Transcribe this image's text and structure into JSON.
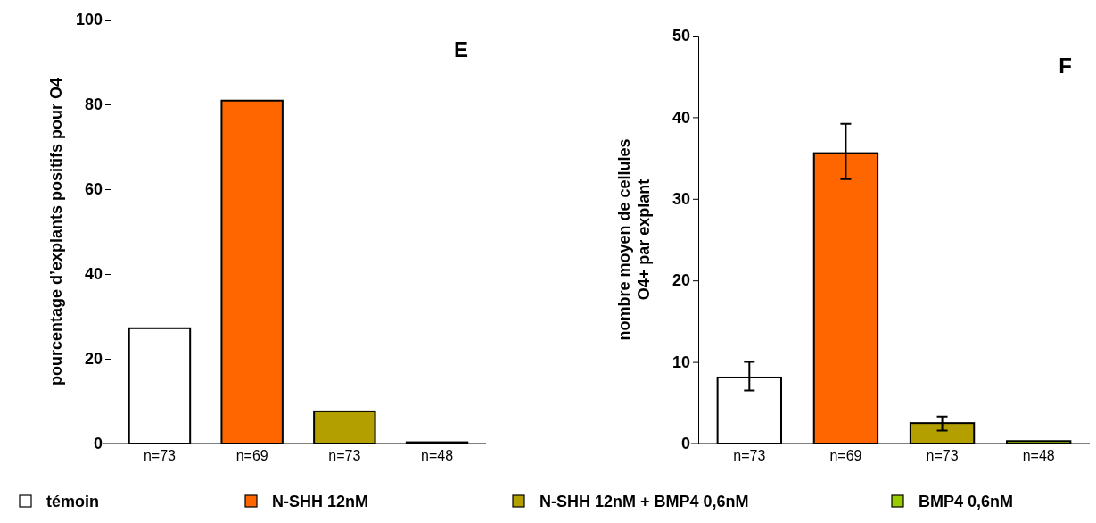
{
  "chart_data": [
    {
      "type": "bar",
      "title": "E",
      "ylabel": "pourcentage d’explants positifs pour O4",
      "categories": [
        "n=73",
        "n=69",
        "n=73",
        "n=48"
      ],
      "stacked": true,
      "legend": "bottom",
      "ylim": [
        0,
        100
      ],
      "yticks": [
        0,
        20,
        40,
        60,
        80,
        100
      ],
      "series": [
        {
          "name": "témoin",
          "color": "#ffffff",
          "values": [
            27.2,
            null,
            null,
            null
          ]
        },
        {
          "name": "N-SHH 12nM",
          "color": "#ff6600",
          "values": [
            null,
            80.9,
            null,
            null
          ]
        },
        {
          "name": "N-SHH 12nM + BMP4 0,6nM",
          "color": "#b3a000",
          "values": [
            null,
            null,
            7.6,
            null
          ]
        },
        {
          "name": "BMP4 0,6nM",
          "color": "#99cc00",
          "values": [
            null,
            null,
            null,
            0.3
          ]
        }
      ]
    },
    {
      "type": "bar",
      "title": "F",
      "ylabel": "nombre moyen de cellules\nO4+ par explant",
      "categories": [
        "n=73",
        "n=69",
        "n=73",
        "n=48"
      ],
      "stacked": true,
      "ylim": [
        0,
        50
      ],
      "yticks": [
        0,
        10,
        20,
        30,
        40,
        50
      ],
      "series": [
        {
          "color": "#ffffff",
          "values": [
            8.1,
            null,
            null,
            null
          ],
          "errors": [
            [
              6.5,
              10.0
            ],
            null,
            null,
            null
          ]
        },
        {
          "color": "#ff6600",
          "values": [
            null,
            35.6,
            null,
            null
          ],
          "errors": [
            null,
            [
              32.4,
              39.2
            ],
            null,
            null
          ]
        },
        {
          "color": "#b3a000",
          "values": [
            null,
            null,
            2.5,
            null
          ],
          "errors": [
            null,
            null,
            [
              1.6,
              3.3
            ],
            null
          ]
        },
        {
          "color": "#99cc00",
          "values": [
            null,
            null,
            null,
            0.3
          ]
        }
      ]
    }
  ]
}
